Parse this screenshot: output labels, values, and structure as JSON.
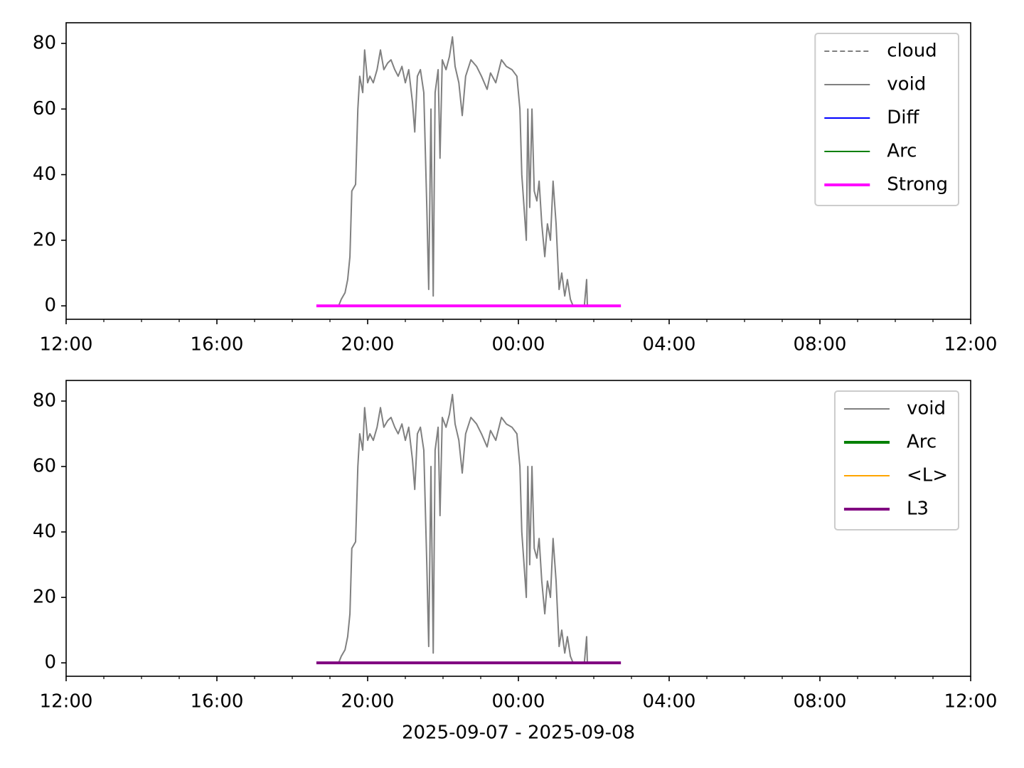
{
  "chart_data": [
    {
      "type": "line",
      "xlim": [
        0,
        24
      ],
      "xticks": [
        {
          "value": 0,
          "label": "12:00"
        },
        {
          "value": 4,
          "label": "16:00"
        },
        {
          "value": 8,
          "label": "20:00"
        },
        {
          "value": 12,
          "label": "00:00"
        },
        {
          "value": 16,
          "label": "04:00"
        },
        {
          "value": 20,
          "label": "08:00"
        },
        {
          "value": 24,
          "label": "12:00"
        }
      ],
      "xminorticks": [
        1,
        2,
        3,
        5,
        6,
        7,
        9,
        10,
        11,
        13,
        14,
        15,
        17,
        18,
        19,
        21,
        22,
        23
      ],
      "ylim": [
        -4.1,
        86.3
      ],
      "yticks": [
        0,
        20,
        40,
        60,
        80
      ],
      "legend": "upper right",
      "series": [
        {
          "name": "cloud",
          "color": "#808080",
          "width": 2,
          "dash": true,
          "x": [],
          "values": []
        },
        {
          "name": "void",
          "color": "#808080",
          "width": 2,
          "dash": false,
          "x": [
            7.23,
            7.3,
            7.4,
            7.47,
            7.53,
            7.58,
            7.68,
            7.74,
            7.79,
            7.87,
            7.92,
            8.0,
            8.06,
            8.15,
            8.25,
            8.34,
            8.43,
            8.53,
            8.62,
            8.72,
            8.81,
            8.91,
            9.0,
            9.09,
            9.19,
            9.25,
            9.32,
            9.4,
            9.49,
            9.57,
            9.62,
            9.68,
            9.74,
            9.79,
            9.87,
            9.92,
            9.98,
            10.08,
            10.17,
            10.25,
            10.32,
            10.42,
            10.51,
            10.6,
            10.74,
            10.89,
            11.02,
            11.17,
            11.26,
            11.4,
            11.55,
            11.68,
            11.83,
            11.96,
            12.04,
            12.09,
            12.15,
            12.21,
            12.25,
            12.3,
            12.36,
            12.42,
            12.49,
            12.55,
            12.62,
            12.7,
            12.77,
            12.85,
            12.92,
            13.0,
            13.08,
            13.15,
            13.23,
            13.3,
            13.38,
            13.45,
            13.53,
            13.68,
            13.75,
            13.81,
            13.83
          ],
          "values": [
            0,
            2,
            4,
            8,
            15,
            35,
            37,
            60,
            70,
            65,
            78,
            68,
            70,
            68,
            72,
            78,
            72,
            74,
            75,
            72,
            70,
            73,
            68,
            72,
            62,
            53,
            70,
            72,
            65,
            30,
            5,
            60,
            3,
            65,
            72,
            45,
            75,
            72,
            76,
            82,
            73,
            68,
            58,
            70,
            75,
            73,
            70,
            66,
            71,
            68,
            75,
            73,
            72,
            70,
            60,
            40,
            30,
            20,
            60,
            30,
            60,
            35,
            32,
            38,
            25,
            15,
            25,
            20,
            38,
            25,
            5,
            10,
            3,
            8,
            2,
            0,
            0,
            0,
            0,
            8,
            0
          ]
        },
        {
          "name": "Diff",
          "color": "#0000ff",
          "width": 2,
          "dash": false,
          "x": [],
          "values": []
        },
        {
          "name": "Arc",
          "color": "#008000",
          "width": 2,
          "dash": false,
          "x": [],
          "values": []
        },
        {
          "name": "Strong",
          "color": "#ff00ff",
          "width": 4,
          "dash": false,
          "x": [
            6.64,
            14.72
          ],
          "values": [
            0,
            0
          ]
        }
      ]
    },
    {
      "type": "line",
      "xlabel": "2025-09-07 - 2025-09-08",
      "xlim": [
        0,
        24
      ],
      "xticks": [
        {
          "value": 0,
          "label": "12:00"
        },
        {
          "value": 4,
          "label": "16:00"
        },
        {
          "value": 8,
          "label": "20:00"
        },
        {
          "value": 12,
          "label": "00:00"
        },
        {
          "value": 16,
          "label": "04:00"
        },
        {
          "value": 20,
          "label": "08:00"
        },
        {
          "value": 24,
          "label": "12:00"
        }
      ],
      "xminorticks": [
        1,
        2,
        3,
        5,
        6,
        7,
        9,
        10,
        11,
        13,
        14,
        15,
        17,
        18,
        19,
        21,
        22,
        23
      ],
      "ylim": [
        -4.1,
        86.3
      ],
      "yticks": [
        0,
        20,
        40,
        60,
        80
      ],
      "legend": "upper right",
      "series": [
        {
          "name": "void",
          "color": "#808080",
          "width": 2,
          "dash": false,
          "x": [
            7.23,
            7.3,
            7.4,
            7.47,
            7.53,
            7.58,
            7.68,
            7.74,
            7.79,
            7.87,
            7.92,
            8.0,
            8.06,
            8.15,
            8.25,
            8.34,
            8.43,
            8.53,
            8.62,
            8.72,
            8.81,
            8.91,
            9.0,
            9.09,
            9.19,
            9.25,
            9.32,
            9.4,
            9.49,
            9.57,
            9.62,
            9.68,
            9.74,
            9.79,
            9.87,
            9.92,
            9.98,
            10.08,
            10.17,
            10.25,
            10.32,
            10.42,
            10.51,
            10.6,
            10.74,
            10.89,
            11.02,
            11.17,
            11.26,
            11.4,
            11.55,
            11.68,
            11.83,
            11.96,
            12.04,
            12.09,
            12.15,
            12.21,
            12.25,
            12.3,
            12.36,
            12.42,
            12.49,
            12.55,
            12.62,
            12.7,
            12.77,
            12.85,
            12.92,
            13.0,
            13.08,
            13.15,
            13.23,
            13.3,
            13.38,
            13.45,
            13.53,
            13.68,
            13.75,
            13.81,
            13.83
          ],
          "values": [
            0,
            2,
            4,
            8,
            15,
            35,
            37,
            60,
            70,
            65,
            78,
            68,
            70,
            68,
            72,
            78,
            72,
            74,
            75,
            72,
            70,
            73,
            68,
            72,
            62,
            53,
            70,
            72,
            65,
            30,
            5,
            60,
            3,
            65,
            72,
            45,
            75,
            72,
            76,
            82,
            73,
            68,
            58,
            70,
            75,
            73,
            70,
            66,
            71,
            68,
            75,
            73,
            72,
            70,
            60,
            40,
            30,
            20,
            60,
            30,
            60,
            35,
            32,
            38,
            25,
            15,
            25,
            20,
            38,
            25,
            5,
            10,
            3,
            8,
            2,
            0,
            0,
            0,
            0,
            8,
            0
          ]
        },
        {
          "name": "Arc",
          "color": "#008000",
          "width": 4,
          "dash": false,
          "x": [],
          "values": []
        },
        {
          "name": "<L>",
          "color": "#ffa500",
          "width": 2,
          "dash": false,
          "x": [],
          "values": []
        },
        {
          "name": "L3",
          "color": "#800080",
          "width": 4,
          "dash": false,
          "x": [
            6.64,
            14.72
          ],
          "values": [
            0,
            0
          ]
        }
      ]
    }
  ]
}
